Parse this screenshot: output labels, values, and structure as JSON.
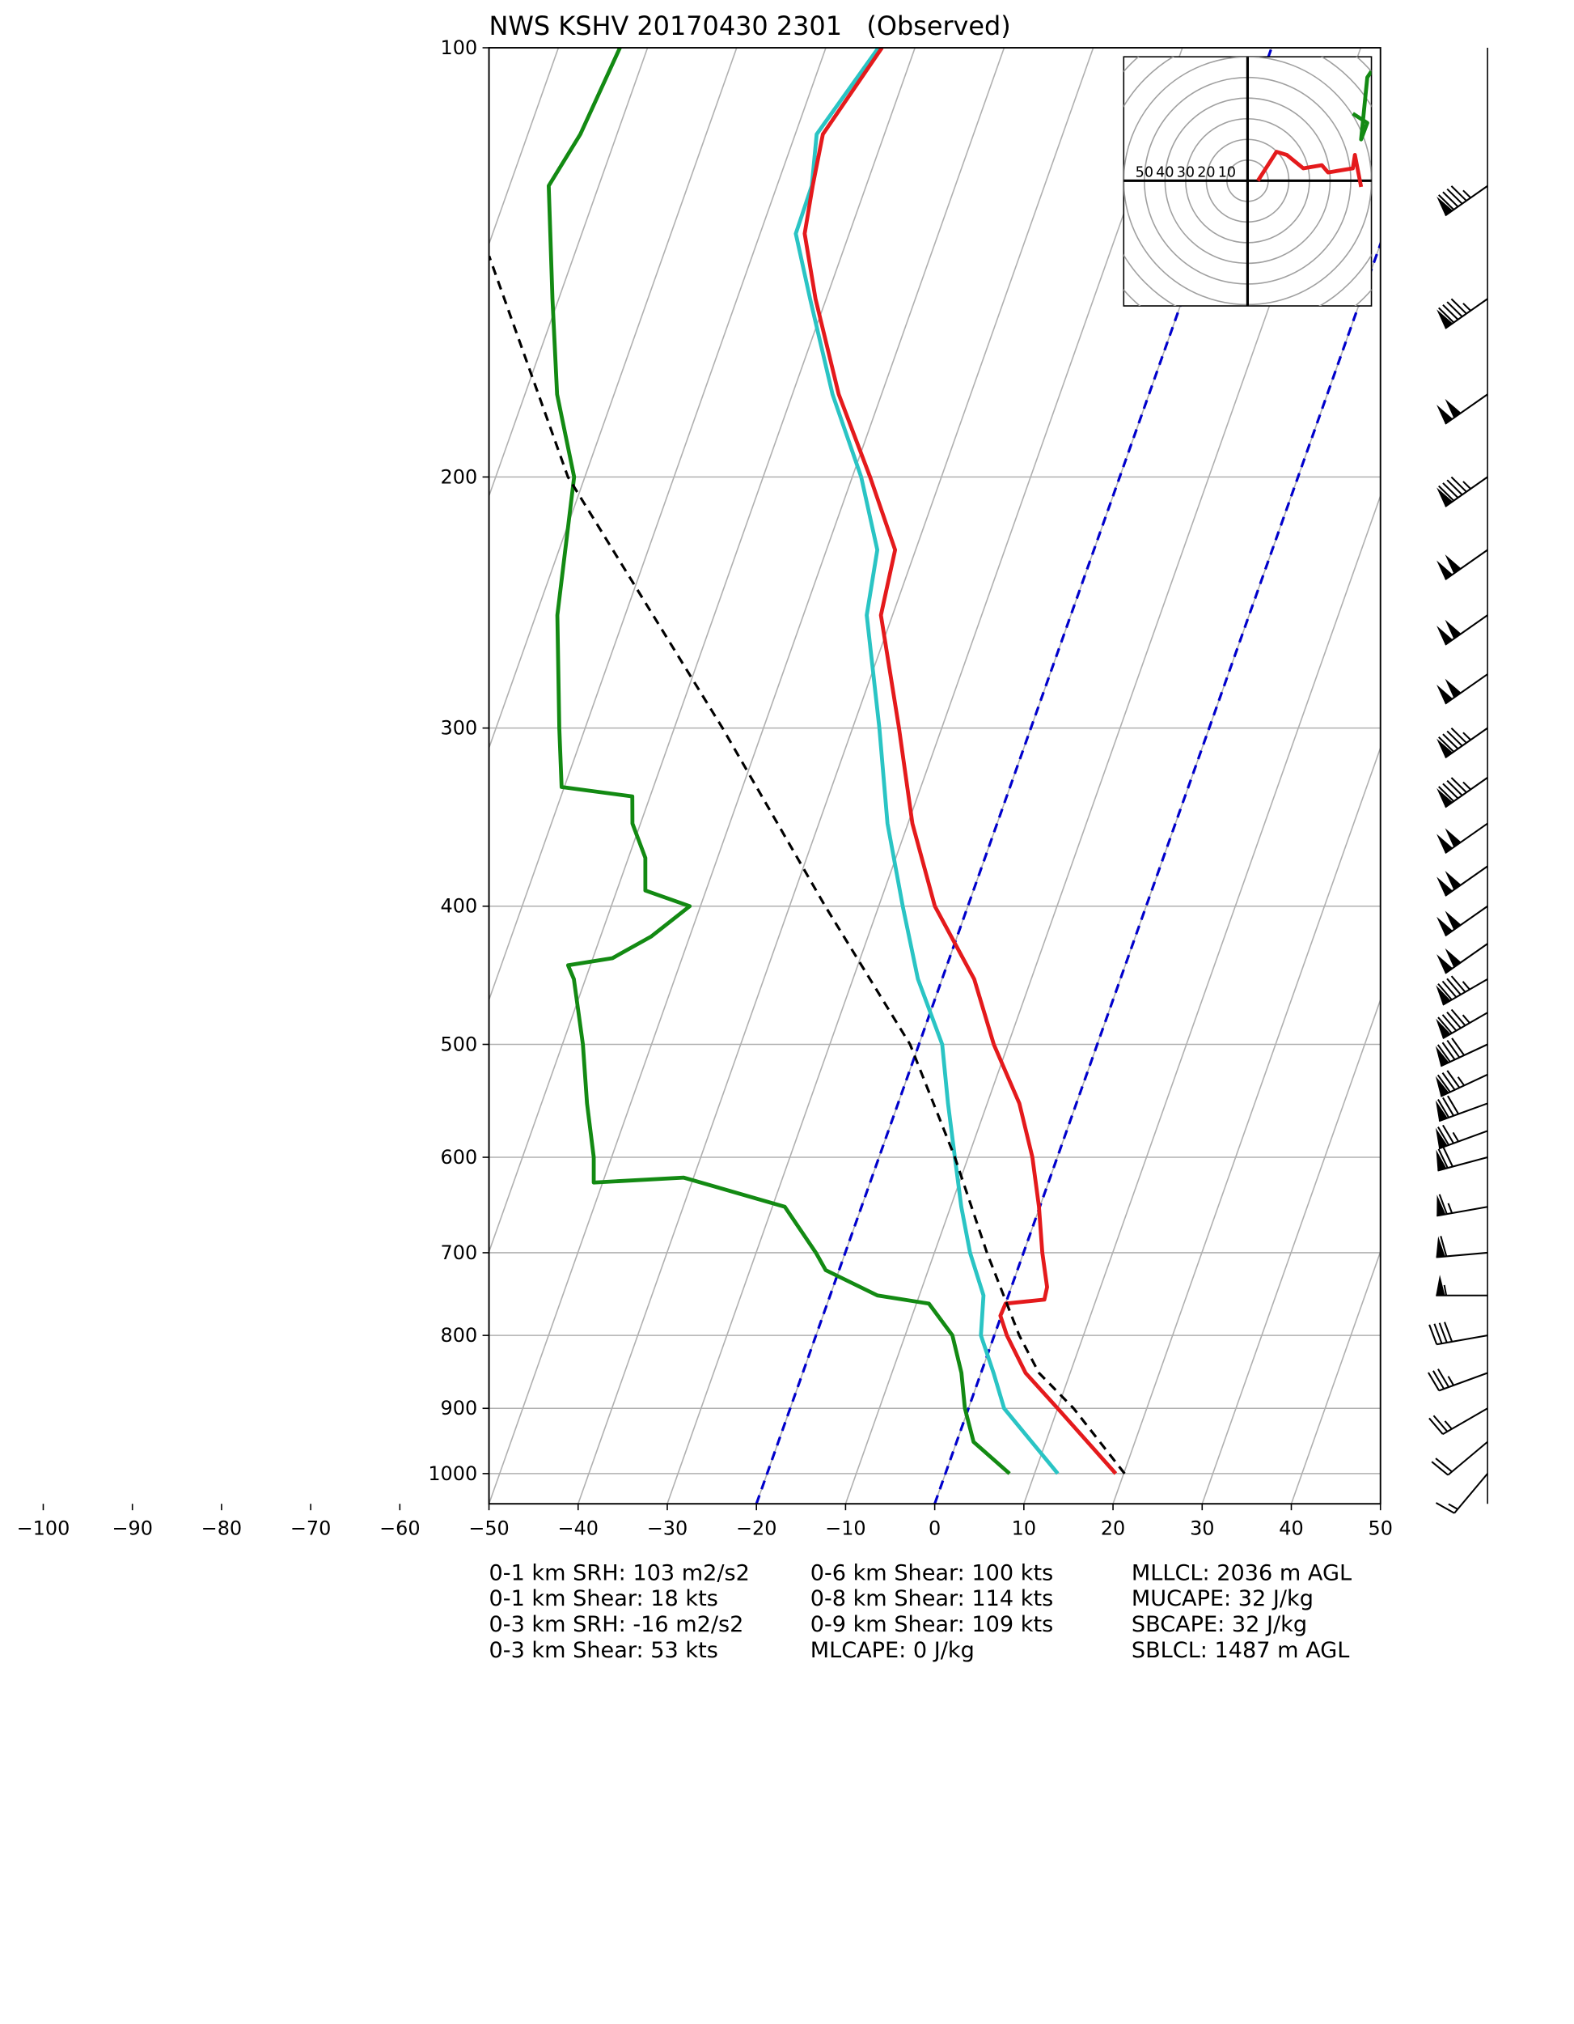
{
  "chart_data": {
    "type": "skewt",
    "title": "NWS KSHV 20170430 2301   (Observed)",
    "xlim": [
      -50,
      50
    ],
    "ylim": [
      1050,
      100
    ],
    "log_y": true,
    "grid": true,
    "xticks": [
      {
        "value": -100,
        "label": "−100"
      },
      {
        "value": -90,
        "label": "−90"
      },
      {
        "value": -80,
        "label": "−80"
      },
      {
        "value": -70,
        "label": "−70"
      },
      {
        "value": -60,
        "label": "−60"
      },
      {
        "value": -50,
        "label": "−50"
      },
      {
        "value": -40,
        "label": "−40"
      },
      {
        "value": -30,
        "label": "−30"
      },
      {
        "value": -20,
        "label": "−20"
      },
      {
        "value": -10,
        "label": "−10"
      },
      0,
      10,
      20,
      30,
      40,
      50
    ],
    "yticks": [
      100,
      200,
      300,
      400,
      500,
      600,
      700,
      800,
      900,
      1000
    ],
    "highlight_isotherms": [
      0,
      -20
    ],
    "highlight_color": "#0000cc",
    "series": [
      {
        "color": "#2ac4c4",
        "dashed": false,
        "pressure": [
          1000,
          900,
          850,
          800,
          750,
          700,
          650,
          600,
          550,
          500,
          450,
          400,
          350,
          300,
          250,
          225,
          200,
          175,
          150,
          135,
          125,
          115,
          100
        ],
        "values": [
          12.6,
          4,
          1.4,
          -1.5,
          -2.8,
          -6,
          -8.8,
          -11.5,
          -14.4,
          -17.4,
          -22.7,
          -27.3,
          -32.3,
          -37,
          -42.9,
          -44.3,
          -49,
          -55.5,
          -61.8,
          -66,
          -66.1,
          -67.6,
          -64.1
        ]
      },
      {
        "color": "#e41a1c",
        "dashed": false,
        "pressure": [
          1000,
          900,
          850,
          800,
          775,
          760,
          755,
          740,
          700,
          650,
          600,
          550,
          500,
          450,
          400,
          350,
          300,
          250,
          225,
          200,
          175,
          150,
          135,
          125,
          115,
          100
        ],
        "values": [
          19.1,
          10,
          5,
          1.4,
          -0.1,
          0,
          4.2,
          4,
          2.1,
          -0.1,
          -2.8,
          -6.4,
          -11.6,
          -16.4,
          -23.7,
          -29.5,
          -34.8,
          -41.3,
          -42.3,
          -48,
          -54.8,
          -61.2,
          -65,
          -66,
          -66.9,
          -63.7
        ]
      },
      {
        "color": "#138a13",
        "dashed": false,
        "pressure": [
          1000,
          950,
          900,
          850,
          800,
          760,
          750,
          720,
          700,
          650,
          620,
          625,
          600,
          550,
          500,
          450,
          440,
          435,
          420,
          400,
          390,
          370,
          350,
          335,
          330,
          300,
          250,
          200,
          175,
          150,
          125,
          115,
          100
        ],
        "values": [
          7.2,
          1.9,
          -0.4,
          -2.2,
          -4.7,
          -8.6,
          -14.7,
          -21.5,
          -23.3,
          -28.6,
          -41.1,
          -51,
          -52,
          -54.9,
          -57.7,
          -61.3,
          -62.5,
          -57.8,
          -54.3,
          -51.2,
          -56.8,
          -58.1,
          -60.9,
          -62,
          -70.3,
          -72.9,
          -77.6,
          -81.2,
          -86.4,
          -90.7,
          -95.6,
          -94.1,
          -93.1
        ]
      },
      {
        "color": "#000000",
        "dashed": true,
        "pressure": [
          1000,
          900,
          850,
          800,
          700,
          600,
          500,
          400,
          300,
          200,
          140
        ],
        "values": [
          20.1,
          11.8,
          6.5,
          2.8,
          -4.1,
          -11.5,
          -21,
          -36,
          -54.6,
          -81.9,
          -99.5
        ]
      }
    ],
    "barbs": {
      "pressure": [
        125,
        150,
        175,
        200,
        225,
        250,
        275,
        300,
        325,
        350,
        375,
        400,
        425,
        450,
        475,
        500,
        525,
        550,
        575,
        600,
        650,
        700,
        750,
        800,
        850,
        900,
        950,
        1000
      ],
      "speed": [
        95,
        95,
        100,
        95,
        100,
        100,
        100,
        95,
        95,
        100,
        100,
        100,
        100,
        95,
        95,
        90,
        85,
        80,
        75,
        70,
        65,
        60,
        55,
        40,
        35,
        25,
        20,
        15
      ],
      "direction": [
        235,
        235,
        235,
        235,
        235,
        235,
        235,
        235,
        235,
        235,
        235,
        235,
        235,
        240,
        240,
        245,
        245,
        250,
        250,
        255,
        260,
        265,
        270,
        260,
        250,
        240,
        230,
        220
      ]
    },
    "hodograph": {
      "rings": [
        10,
        20,
        30,
        40,
        50,
        60,
        70,
        80
      ],
      "ring_labels": [
        50,
        40,
        30,
        20,
        10
      ],
      "traces": [
        {
          "color": "#e41a1c",
          "u": [
            5,
            14,
            19,
            27,
            36,
            39,
            51,
            52,
            55
          ],
          "v": [
            0,
            14,
            12.5,
            6,
            7.5,
            4,
            6,
            12.5,
            -3
          ]
        },
        {
          "color": "#138a13",
          "u": [
            51,
            58,
            55,
            58,
            60
          ],
          "v": [
            32.5,
            28,
            20,
            50,
            53
          ]
        }
      ]
    },
    "stats": [
      [
        "0-1 km SRH: 103 m2/s2",
        "0-1 km Shear: 18 kts",
        "0-3 km SRH: -16 m2/s2",
        "0-3 km Shear: 53 kts"
      ],
      [
        "0-6 km Shear: 100 kts",
        "0-8 km Shear: 114 kts",
        "0-9 km Shear: 109 kts",
        "MLCAPE: 0 J/kg"
      ],
      [
        "MLLCL: 2036 m AGL",
        "MUCAPE: 32 J/kg",
        "SBCAPE: 32 J/kg",
        "SBLCL: 1487 m AGL"
      ]
    ]
  }
}
